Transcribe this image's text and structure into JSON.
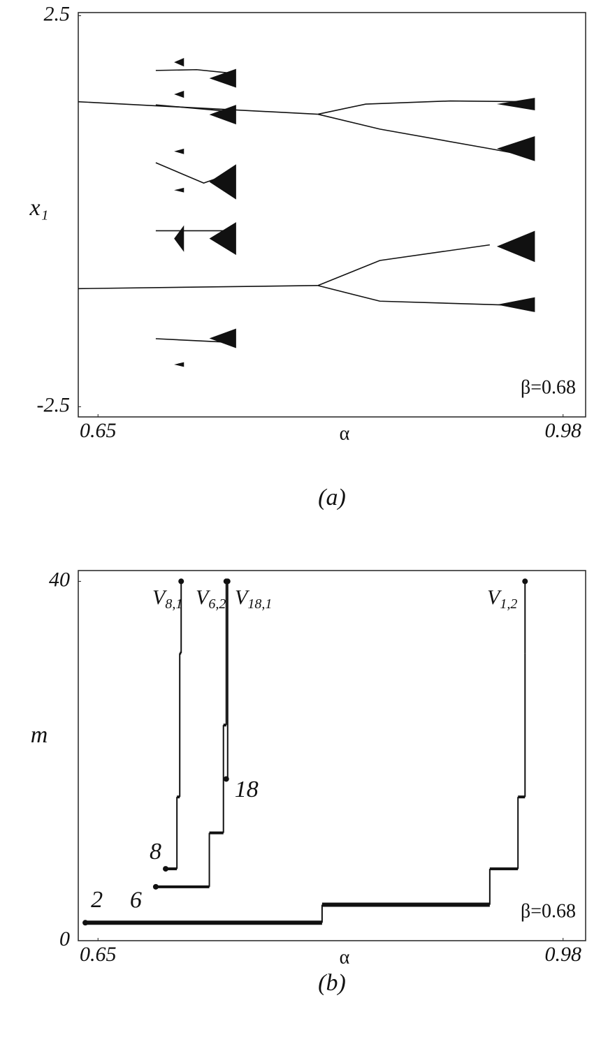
{
  "chart_data": [
    {
      "type": "line",
      "caption": "(a)",
      "xlabel": "α",
      "ylabel": "x₁",
      "annotation": "β=0.68",
      "xlim": [
        0.636,
        0.996
      ],
      "ylim": [
        -2.63,
        2.54
      ],
      "xticks": [
        0.65,
        0.98
      ],
      "yticks": [
        2.5,
        -2.5
      ],
      "color": "#111111",
      "series": [
        {
          "x": [
            0.636,
            0.806
          ],
          "values": [
            1.4,
            1.24
          ]
        },
        {
          "x": [
            0.806,
            0.84,
            0.9,
            0.958
          ],
          "values": [
            1.24,
            1.37,
            1.41,
            1.4
          ]
        },
        {
          "x": [
            0.806,
            0.85,
            0.928,
            0.958
          ],
          "values": [
            1.24,
            1.05,
            0.8,
            0.7
          ]
        },
        {
          "x": [
            0.636,
            0.806
          ],
          "values": [
            -0.99,
            -0.95
          ]
        },
        {
          "x": [
            0.806,
            0.85,
            0.928
          ],
          "values": [
            -0.95,
            -0.63,
            -0.43
          ]
        },
        {
          "x": [
            0.806,
            0.85,
            0.958
          ],
          "values": [
            -0.95,
            -1.15,
            -1.21
          ]
        },
        {
          "x": [
            0.691,
            0.72,
            0.747
          ],
          "values": [
            1.8,
            1.81,
            1.76
          ]
        },
        {
          "x": [
            0.691,
            0.747
          ],
          "values": [
            1.36,
            1.27
          ]
        },
        {
          "x": [
            0.691,
            0.725,
            0.747
          ],
          "values": [
            0.62,
            0.36,
            0.5
          ]
        },
        {
          "x": [
            0.691,
            0.747
          ],
          "values": [
            -0.25,
            -0.25
          ]
        },
        {
          "x": [
            0.691,
            0.747
          ],
          "values": [
            -1.63,
            -1.68
          ]
        }
      ],
      "bands": [
        {
          "x": [
            0.729,
            0.748
          ],
          "y": [
            1.58,
            1.82
          ]
        },
        {
          "x": [
            0.729,
            0.748
          ],
          "y": [
            1.11,
            1.36
          ]
        },
        {
          "x": [
            0.729,
            0.748
          ],
          "y": [
            0.15,
            0.6
          ]
        },
        {
          "x": [
            0.729,
            0.748
          ],
          "y": [
            -0.56,
            -0.14
          ]
        },
        {
          "x": [
            0.729,
            0.748
          ],
          "y": [
            -1.75,
            -1.5
          ]
        },
        {
          "x": [
            0.704,
            0.711
          ],
          "y": [
            1.85,
            1.96
          ]
        },
        {
          "x": [
            0.704,
            0.711
          ],
          "y": [
            1.45,
            1.54
          ]
        },
        {
          "x": [
            0.704,
            0.711
          ],
          "y": [
            0.73,
            0.8
          ]
        },
        {
          "x": [
            0.704,
            0.711
          ],
          "y": [
            0.24,
            0.3
          ]
        },
        {
          "x": [
            0.704,
            0.711
          ],
          "y": [
            -0.52,
            -0.18
          ]
        },
        {
          "x": [
            0.704,
            0.711
          ],
          "y": [
            -1.99,
            -1.93
          ]
        },
        {
          "x": [
            0.933,
            0.96
          ],
          "y": [
            1.29,
            1.45
          ]
        },
        {
          "x": [
            0.933,
            0.96
          ],
          "y": [
            0.64,
            0.96
          ]
        },
        {
          "x": [
            0.933,
            0.96
          ],
          "y": [
            -0.65,
            -0.25
          ]
        },
        {
          "x": [
            0.933,
            0.96
          ],
          "y": [
            -1.29,
            -1.1
          ]
        }
      ]
    },
    {
      "type": "step",
      "caption": "(b)",
      "xlabel": "α",
      "ylabel": "m",
      "annotation": "β=0.68",
      "xlim": [
        0.636,
        0.996
      ],
      "ylim": [
        0,
        41.2
      ],
      "xticks": [
        0.65,
        0.98
      ],
      "yticks": [
        40,
        0
      ],
      "color": "#111111",
      "series": [
        {
          "name": "2",
          "x": [
            0.641,
            0.809,
            0.928,
            0.948,
            0.953,
            0.953
          ],
          "values": [
            2,
            4,
            8,
            16,
            32,
            40
          ]
        },
        {
          "name": "6",
          "x": [
            0.691,
            0.729,
            0.739,
            0.741,
            0.741
          ],
          "values": [
            6,
            12,
            24,
            40,
            40
          ]
        },
        {
          "name": "8",
          "x": [
            0.698,
            0.706,
            0.708,
            0.709,
            0.709
          ],
          "values": [
            8,
            16,
            32,
            40,
            40
          ]
        },
        {
          "name": "18",
          "x": [
            0.741,
            0.742,
            0.742
          ],
          "values": [
            18,
            40,
            40
          ]
        }
      ],
      "labels": [
        {
          "base": "V",
          "sub": "8,1"
        },
        {
          "base": "V",
          "sub": "6,2"
        },
        {
          "base": "V",
          "sub": "18,1"
        },
        {
          "base": "V",
          "sub": "1,2"
        }
      ]
    }
  ]
}
